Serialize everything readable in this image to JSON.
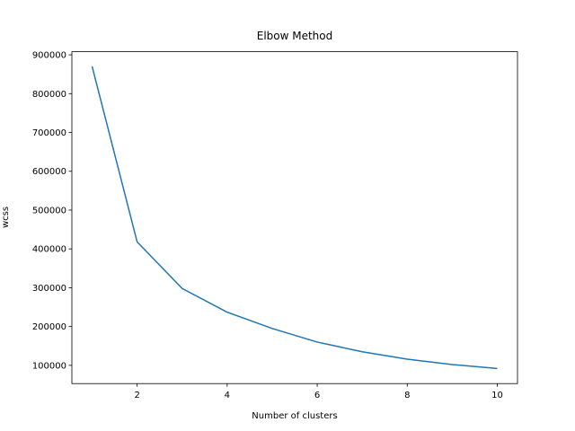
{
  "chart_data": {
    "type": "line",
    "title": "Elbow Method",
    "x_label": "Number of clusters",
    "y_label": "wcss",
    "x": [
      1,
      2,
      3,
      4,
      5,
      6,
      7,
      8,
      9,
      10
    ],
    "series": [
      {
        "name": "wcss",
        "color": "#1f77b4",
        "values": [
          870000,
          418000,
          298000,
          237000,
          195000,
          160000,
          135000,
          116000,
          102000,
          92000
        ]
      }
    ],
    "xlim": [
      0.55,
      10.45
    ],
    "xticks": [
      2,
      4,
      6,
      8,
      10
    ],
    "ylim": [
      53000,
      908000
    ],
    "yticks": [
      100000,
      200000,
      300000,
      400000,
      500000,
      600000,
      700000,
      800000,
      900000
    ],
    "grid": false
  }
}
